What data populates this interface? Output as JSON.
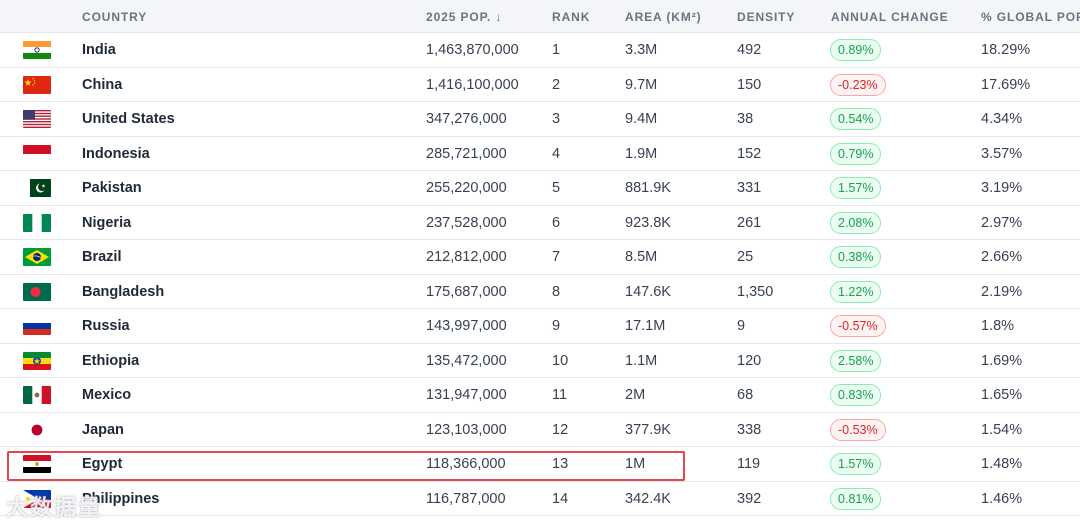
{
  "headers": {
    "country": "COUNTRY",
    "pop": "2025 POP. ↓",
    "rank": "RANK",
    "area": "AREA (KM²)",
    "density": "DENSITY",
    "change": "ANNUAL CHANGE",
    "global": "% GLOBAL POP"
  },
  "rows": [
    {
      "flag": "india-flag",
      "country": "India",
      "pop": "1,463,870,000",
      "rank": "1",
      "area": "3.3M",
      "density": "492",
      "change": "0.89%",
      "trend": "up",
      "global": "18.29%"
    },
    {
      "flag": "china-flag",
      "country": "China",
      "pop": "1,416,100,000",
      "rank": "2",
      "area": "9.7M",
      "density": "150",
      "change": "-0.23%",
      "trend": "down",
      "global": "17.69%"
    },
    {
      "flag": "usa-flag",
      "country": "United States",
      "pop": "347,276,000",
      "rank": "3",
      "area": "9.4M",
      "density": "38",
      "change": "0.54%",
      "trend": "up",
      "global": "4.34%"
    },
    {
      "flag": "indonesia-flag",
      "country": "Indonesia",
      "pop": "285,721,000",
      "rank": "4",
      "area": "1.9M",
      "density": "152",
      "change": "0.79%",
      "trend": "up",
      "global": "3.57%"
    },
    {
      "flag": "pakistan-flag",
      "country": "Pakistan",
      "pop": "255,220,000",
      "rank": "5",
      "area": "881.9K",
      "density": "331",
      "change": "1.57%",
      "trend": "up",
      "global": "3.19%"
    },
    {
      "flag": "nigeria-flag",
      "country": "Nigeria",
      "pop": "237,528,000",
      "rank": "6",
      "area": "923.8K",
      "density": "261",
      "change": "2.08%",
      "trend": "up",
      "global": "2.97%"
    },
    {
      "flag": "brazil-flag",
      "country": "Brazil",
      "pop": "212,812,000",
      "rank": "7",
      "area": "8.5M",
      "density": "25",
      "change": "0.38%",
      "trend": "up",
      "global": "2.66%"
    },
    {
      "flag": "bangladesh-flag",
      "country": "Bangladesh",
      "pop": "175,687,000",
      "rank": "8",
      "area": "147.6K",
      "density": "1,350",
      "change": "1.22%",
      "trend": "up",
      "global": "2.19%"
    },
    {
      "flag": "russia-flag",
      "country": "Russia",
      "pop": "143,997,000",
      "rank": "9",
      "area": "17.1M",
      "density": "9",
      "change": "-0.57%",
      "trend": "down",
      "global": "1.8%"
    },
    {
      "flag": "ethiopia-flag",
      "country": "Ethiopia",
      "pop": "135,472,000",
      "rank": "10",
      "area": "1.1M",
      "density": "120",
      "change": "2.58%",
      "trend": "up",
      "global": "1.69%"
    },
    {
      "flag": "mexico-flag",
      "country": "Mexico",
      "pop": "131,947,000",
      "rank": "11",
      "area": "2M",
      "density": "68",
      "change": "0.83%",
      "trend": "up",
      "global": "1.65%"
    },
    {
      "flag": "japan-flag",
      "country": "Japan",
      "pop": "123,103,000",
      "rank": "12",
      "area": "377.9K",
      "density": "338",
      "change": "-0.53%",
      "trend": "down",
      "global": "1.54%"
    },
    {
      "flag": "egypt-flag",
      "country": "Egypt",
      "pop": "118,366,000",
      "rank": "13",
      "area": "1M",
      "density": "119",
      "change": "1.57%",
      "trend": "up",
      "global": "1.48%"
    },
    {
      "flag": "philippines-flag",
      "country": "Philippines",
      "pop": "116,787,000",
      "rank": "14",
      "area": "342.4K",
      "density": "392",
      "change": "0.81%",
      "trend": "up",
      "global": "1.46%"
    }
  ],
  "watermark": "大数据量",
  "colors": {
    "header_bg": "#f3f5f8",
    "positive": "#16a34a",
    "negative": "#dc2626",
    "highlight": "#e8474a"
  }
}
